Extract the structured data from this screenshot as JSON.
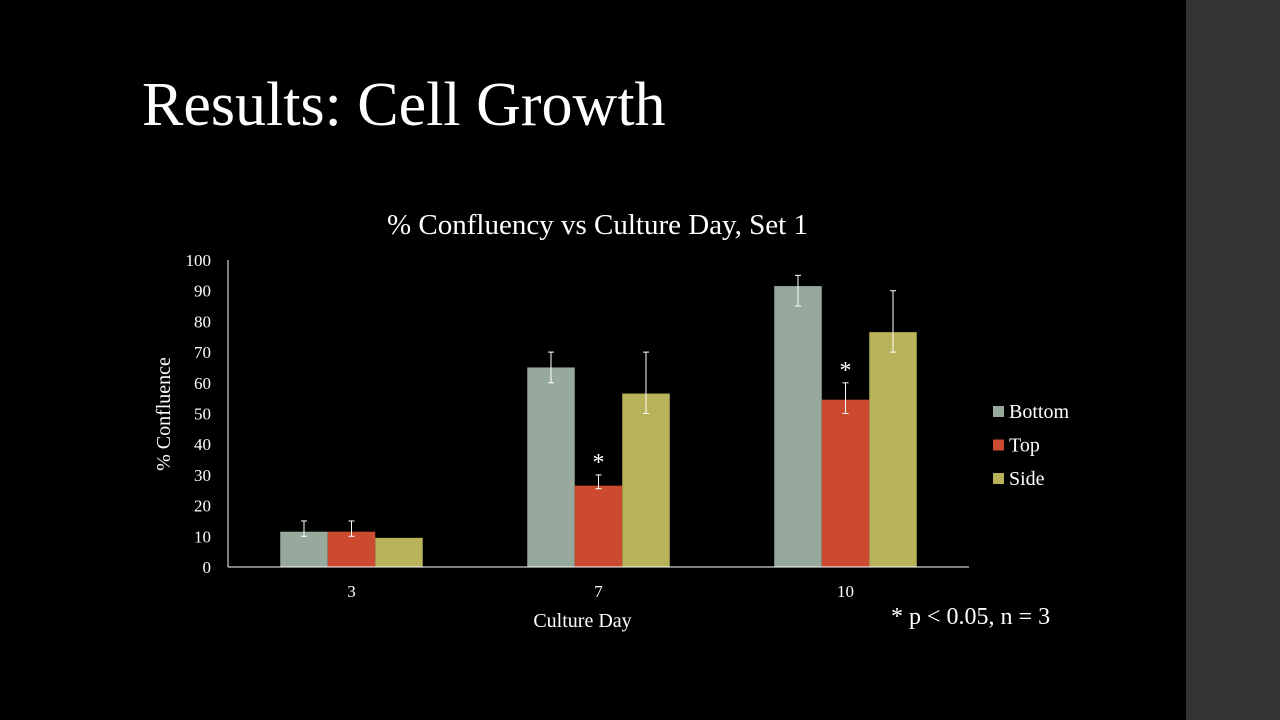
{
  "slide": {
    "title": "Results: Cell Growth",
    "footnote": "* p < 0.05, n = 3"
  },
  "colors": {
    "background": "#000000",
    "side_panel": "#333333",
    "text": "#ffffff",
    "Bottom": "#97a89d",
    "Top": "#cc4b30",
    "Side": "#b8b35a"
  },
  "chart_data": {
    "type": "bar",
    "title": "% Confluency vs Culture Day, Set 1",
    "xlabel": "Culture Day",
    "ylabel": "% Confluence",
    "categories": [
      "3",
      "7",
      "10"
    ],
    "ylim": [
      0,
      100
    ],
    "yticks": [
      "0",
      "10",
      "20",
      "30",
      "40",
      "50",
      "60",
      "70",
      "80",
      "90",
      "100"
    ],
    "grid": false,
    "legend": "right",
    "series": [
      {
        "name": "Bottom",
        "values": [
          11.5,
          65,
          91.5
        ],
        "err_low": [
          10,
          60,
          85
        ],
        "err_high": [
          15,
          70,
          95
        ]
      },
      {
        "name": "Top",
        "values": [
          11.5,
          26.5,
          54.5
        ],
        "err_low": [
          10,
          25.5,
          50
        ],
        "err_high": [
          15,
          30,
          60
        ]
      },
      {
        "name": "Side",
        "values": [
          9.5,
          56.5,
          76.5
        ],
        "err_low": [
          9.5,
          50,
          70
        ],
        "err_high": [
          9.5,
          70,
          90
        ]
      }
    ],
    "annotations": [
      {
        "text": "*",
        "category": "7",
        "series": "Top"
      },
      {
        "text": "*",
        "category": "10",
        "series": "Top"
      }
    ]
  }
}
